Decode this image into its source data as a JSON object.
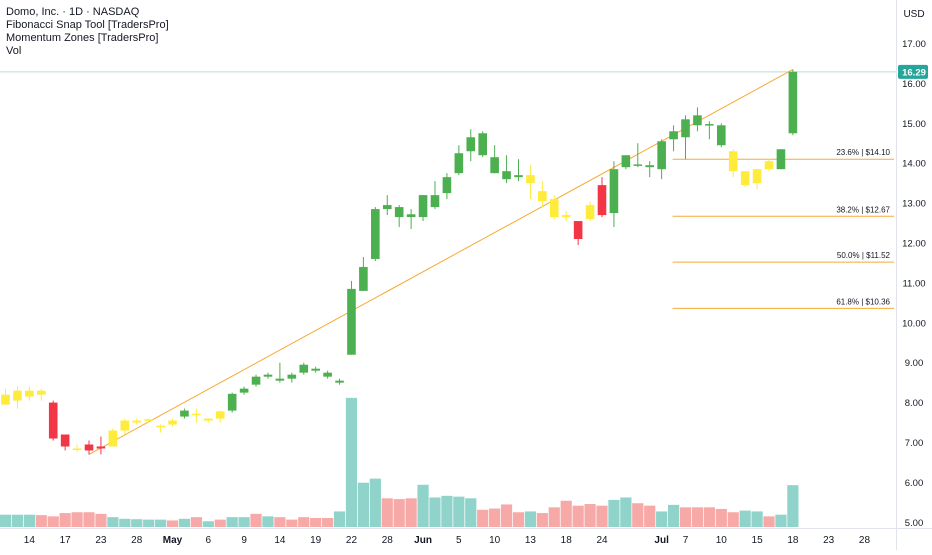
{
  "legend": {
    "title": "Domo, Inc. · 1D · NASDAQ",
    "indicator_1": "Fibonacci Snap Tool [TradersPro]",
    "indicator_2": "Momentum Zones [TradersPro]",
    "indicator_3": "Vol"
  },
  "price_axis": {
    "currency": "USD",
    "ticks": [
      "17.00",
      "16.00",
      "15.00",
      "14.00",
      "13.00",
      "12.00",
      "11.00",
      "10.00",
      "9.00",
      "8.00",
      "7.00",
      "6.00",
      "5.00"
    ],
    "last_price_label": "16.29"
  },
  "fib_labels": [
    "23.6% | $14.10",
    "38.2% | $12.67",
    "50.0% | $11.52",
    "61.8% | $10.36"
  ],
  "time_axis": [
    "14",
    "17",
    "23",
    "28",
    "May",
    "6",
    "9",
    "14",
    "19",
    "22",
    "28",
    "Jun",
    "5",
    "10",
    "13",
    "18",
    "24",
    "Jul",
    "7",
    "10",
    "15",
    "18",
    "23",
    "28"
  ],
  "colors": {
    "up": "#4caf50",
    "down": "#f23645",
    "neutral_zone": "#ffeb3b",
    "vol_up": "#8fd3cb",
    "vol_down": "#f7a9a8",
    "trend_line": "#f7a935",
    "fib_line": "#f7a935",
    "last_price_badge": "#26a69a",
    "last_price_line": "#b2dfdb"
  },
  "chart_data": {
    "type": "candlestick",
    "title": "Domo, Inc. · 1D · NASDAQ",
    "symbol": "DOMO",
    "interval": "1D",
    "exchange": "NASDAQ",
    "currency": "USD",
    "ylim": [
      4.9,
      17.4
    ],
    "last_price": 16.29,
    "candles": [
      {
        "o": 8.2,
        "h": 8.35,
        "l": 7.95,
        "c": 7.95,
        "zone": "neutral"
      },
      {
        "o": 8.05,
        "h": 8.4,
        "l": 7.85,
        "c": 8.3,
        "zone": "neutral"
      },
      {
        "o": 8.15,
        "h": 8.4,
        "l": 8.05,
        "c": 8.3,
        "zone": "neutral"
      },
      {
        "o": 8.2,
        "h": 8.35,
        "l": 8.05,
        "c": 8.3,
        "zone": "neutral"
      },
      {
        "o": 8.0,
        "h": 8.05,
        "l": 7.05,
        "c": 7.1,
        "zone": "down"
      },
      {
        "o": 7.2,
        "h": 7.2,
        "l": 6.8,
        "c": 6.9,
        "zone": "down"
      },
      {
        "o": 6.85,
        "h": 6.95,
        "l": 6.75,
        "c": 6.85,
        "zone": "neutral"
      },
      {
        "o": 6.95,
        "h": 7.05,
        "l": 6.7,
        "c": 6.8,
        "zone": "down"
      },
      {
        "o": 6.85,
        "h": 7.15,
        "l": 6.7,
        "c": 6.9,
        "zone": "down"
      },
      {
        "o": 6.9,
        "h": 7.35,
        "l": 6.9,
        "c": 7.3,
        "zone": "neutral"
      },
      {
        "o": 7.3,
        "h": 7.6,
        "l": 7.2,
        "c": 7.55,
        "zone": "neutral"
      },
      {
        "o": 7.5,
        "h": 7.6,
        "l": 7.45,
        "c": 7.55,
        "zone": "neutral"
      },
      {
        "o": 7.55,
        "h": 7.6,
        "l": 7.5,
        "c": 7.58,
        "zone": "neutral"
      },
      {
        "o": 7.4,
        "h": 7.45,
        "l": 7.25,
        "c": 7.42,
        "zone": "neutral"
      },
      {
        "o": 7.45,
        "h": 7.6,
        "l": 7.4,
        "c": 7.55,
        "zone": "neutral"
      },
      {
        "o": 7.65,
        "h": 7.85,
        "l": 7.6,
        "c": 7.8,
        "zone": "up"
      },
      {
        "o": 7.7,
        "h": 7.85,
        "l": 7.5,
        "c": 7.72,
        "zone": "neutral"
      },
      {
        "o": 7.55,
        "h": 7.6,
        "l": 7.5,
        "c": 7.6,
        "zone": "neutral"
      },
      {
        "o": 7.6,
        "h": 7.8,
        "l": 7.5,
        "c": 7.78,
        "zone": "neutral"
      },
      {
        "o": 7.8,
        "h": 8.25,
        "l": 7.75,
        "c": 8.22,
        "zone": "up"
      },
      {
        "o": 8.25,
        "h": 8.4,
        "l": 8.2,
        "c": 8.35,
        "zone": "up"
      },
      {
        "o": 8.45,
        "h": 8.7,
        "l": 8.4,
        "c": 8.65,
        "zone": "up"
      },
      {
        "o": 8.65,
        "h": 8.75,
        "l": 8.6,
        "c": 8.7,
        "zone": "up"
      },
      {
        "o": 8.55,
        "h": 9.0,
        "l": 8.5,
        "c": 8.6,
        "zone": "up"
      },
      {
        "o": 8.6,
        "h": 8.75,
        "l": 8.5,
        "c": 8.7,
        "zone": "up"
      },
      {
        "o": 8.75,
        "h": 9.0,
        "l": 8.7,
        "c": 8.95,
        "zone": "up"
      },
      {
        "o": 8.85,
        "h": 8.9,
        "l": 8.75,
        "c": 8.8,
        "zone": "up"
      },
      {
        "o": 8.75,
        "h": 8.8,
        "l": 8.6,
        "c": 8.65,
        "zone": "up"
      },
      {
        "o": 8.55,
        "h": 8.6,
        "l": 8.45,
        "c": 8.5,
        "zone": "up"
      },
      {
        "o": 9.2,
        "h": 11.05,
        "l": 9.2,
        "c": 10.85,
        "zone": "up"
      },
      {
        "o": 10.8,
        "h": 11.65,
        "l": 10.8,
        "c": 11.4,
        "zone": "up"
      },
      {
        "o": 11.6,
        "h": 12.9,
        "l": 11.55,
        "c": 12.85,
        "zone": "up"
      },
      {
        "o": 12.85,
        "h": 13.2,
        "l": 12.7,
        "c": 12.95,
        "zone": "up"
      },
      {
        "o": 12.65,
        "h": 12.95,
        "l": 12.4,
        "c": 12.9,
        "zone": "up"
      },
      {
        "o": 12.65,
        "h": 12.85,
        "l": 12.35,
        "c": 12.72,
        "zone": "up"
      },
      {
        "o": 12.65,
        "h": 13.2,
        "l": 12.55,
        "c": 13.2,
        "zone": "up"
      },
      {
        "o": 12.9,
        "h": 13.55,
        "l": 12.85,
        "c": 13.2,
        "zone": "up"
      },
      {
        "o": 13.25,
        "h": 13.75,
        "l": 13.1,
        "c": 13.65,
        "zone": "up"
      },
      {
        "o": 13.75,
        "h": 14.45,
        "l": 13.7,
        "c": 14.25,
        "zone": "up"
      },
      {
        "o": 14.3,
        "h": 14.85,
        "l": 14.05,
        "c": 14.65,
        "zone": "up"
      },
      {
        "o": 14.2,
        "h": 14.8,
        "l": 14.15,
        "c": 14.75,
        "zone": "up"
      },
      {
        "o": 14.15,
        "h": 14.45,
        "l": 13.75,
        "c": 13.75,
        "zone": "up"
      },
      {
        "o": 13.8,
        "h": 14.2,
        "l": 13.5,
        "c": 13.6,
        "zone": "up"
      },
      {
        "o": 13.65,
        "h": 14.1,
        "l": 13.55,
        "c": 13.7,
        "zone": "up"
      },
      {
        "o": 13.7,
        "h": 13.95,
        "l": 13.1,
        "c": 13.5,
        "zone": "neutral"
      },
      {
        "o": 13.3,
        "h": 13.55,
        "l": 12.9,
        "c": 13.05,
        "zone": "neutral"
      },
      {
        "o": 13.1,
        "h": 13.2,
        "l": 12.6,
        "c": 12.65,
        "zone": "neutral"
      },
      {
        "o": 12.65,
        "h": 12.8,
        "l": 12.55,
        "c": 12.7,
        "zone": "neutral"
      },
      {
        "o": 12.55,
        "h": 12.55,
        "l": 11.95,
        "c": 12.1,
        "zone": "down"
      },
      {
        "o": 12.6,
        "h": 13.05,
        "l": 12.55,
        "c": 12.95,
        "zone": "neutral"
      },
      {
        "o": 13.45,
        "h": 13.65,
        "l": 12.65,
        "c": 12.7,
        "zone": "down"
      },
      {
        "o": 12.75,
        "h": 14.05,
        "l": 12.4,
        "c": 13.85,
        "zone": "up"
      },
      {
        "o": 13.9,
        "h": 14.2,
        "l": 13.85,
        "c": 14.2,
        "zone": "up"
      },
      {
        "o": 13.95,
        "h": 14.5,
        "l": 13.9,
        "c": 13.97,
        "zone": "up"
      },
      {
        "o": 13.9,
        "h": 14.05,
        "l": 13.65,
        "c": 13.95,
        "zone": "up"
      },
      {
        "o": 13.85,
        "h": 14.6,
        "l": 13.6,
        "c": 14.55,
        "zone": "up"
      },
      {
        "o": 14.6,
        "h": 14.95,
        "l": 14.3,
        "c": 14.8,
        "zone": "up"
      },
      {
        "o": 14.65,
        "h": 15.2,
        "l": 14.1,
        "c": 15.1,
        "zone": "up"
      },
      {
        "o": 14.95,
        "h": 15.4,
        "l": 14.8,
        "c": 15.2,
        "zone": "up"
      },
      {
        "o": 14.95,
        "h": 15.05,
        "l": 14.6,
        "c": 14.98,
        "zone": "up"
      },
      {
        "o": 14.95,
        "h": 15.0,
        "l": 14.4,
        "c": 14.45,
        "zone": "up"
      },
      {
        "o": 14.3,
        "h": 14.35,
        "l": 13.65,
        "c": 13.8,
        "zone": "neutral"
      },
      {
        "o": 13.8,
        "h": 13.8,
        "l": 13.4,
        "c": 13.45,
        "zone": "neutral"
      },
      {
        "o": 13.5,
        "h": 13.85,
        "l": 13.35,
        "c": 13.85,
        "zone": "neutral"
      },
      {
        "o": 13.85,
        "h": 14.1,
        "l": 13.8,
        "c": 14.05,
        "zone": "neutral"
      },
      {
        "o": 13.85,
        "h": 14.35,
        "l": 13.85,
        "c": 14.35,
        "zone": "up"
      },
      {
        "o": 14.75,
        "h": 16.35,
        "l": 14.7,
        "c": 16.29,
        "zone": "up"
      }
    ],
    "volume": [
      {
        "v": 0.3,
        "d": "up"
      },
      {
        "v": 0.3,
        "d": "up"
      },
      {
        "v": 0.3,
        "d": "up"
      },
      {
        "v": 0.29,
        "d": "down"
      },
      {
        "v": 0.26,
        "d": "down"
      },
      {
        "v": 0.34,
        "d": "down"
      },
      {
        "v": 0.36,
        "d": "down"
      },
      {
        "v": 0.36,
        "d": "down"
      },
      {
        "v": 0.32,
        "d": "down"
      },
      {
        "v": 0.24,
        "d": "up"
      },
      {
        "v": 0.2,
        "d": "up"
      },
      {
        "v": 0.19,
        "d": "up"
      },
      {
        "v": 0.18,
        "d": "up"
      },
      {
        "v": 0.18,
        "d": "up"
      },
      {
        "v": 0.16,
        "d": "down"
      },
      {
        "v": 0.2,
        "d": "up"
      },
      {
        "v": 0.24,
        "d": "down"
      },
      {
        "v": 0.14,
        "d": "up"
      },
      {
        "v": 0.18,
        "d": "down"
      },
      {
        "v": 0.24,
        "d": "up"
      },
      {
        "v": 0.24,
        "d": "up"
      },
      {
        "v": 0.32,
        "d": "down"
      },
      {
        "v": 0.26,
        "d": "up"
      },
      {
        "v": 0.24,
        "d": "down"
      },
      {
        "v": 0.18,
        "d": "down"
      },
      {
        "v": 0.24,
        "d": "down"
      },
      {
        "v": 0.22,
        "d": "down"
      },
      {
        "v": 0.22,
        "d": "down"
      },
      {
        "v": 0.38,
        "d": "up"
      },
      {
        "v": 3.15,
        "d": "up"
      },
      {
        "v": 1.08,
        "d": "up"
      },
      {
        "v": 1.18,
        "d": "up"
      },
      {
        "v": 0.7,
        "d": "down"
      },
      {
        "v": 0.68,
        "d": "down"
      },
      {
        "v": 0.7,
        "d": "down"
      },
      {
        "v": 1.03,
        "d": "up"
      },
      {
        "v": 0.72,
        "d": "up"
      },
      {
        "v": 0.76,
        "d": "up"
      },
      {
        "v": 0.74,
        "d": "up"
      },
      {
        "v": 0.7,
        "d": "up"
      },
      {
        "v": 0.42,
        "d": "down"
      },
      {
        "v": 0.45,
        "d": "down"
      },
      {
        "v": 0.55,
        "d": "down"
      },
      {
        "v": 0.36,
        "d": "down"
      },
      {
        "v": 0.38,
        "d": "up"
      },
      {
        "v": 0.34,
        "d": "down"
      },
      {
        "v": 0.48,
        "d": "down"
      },
      {
        "v": 0.64,
        "d": "down"
      },
      {
        "v": 0.52,
        "d": "down"
      },
      {
        "v": 0.56,
        "d": "down"
      },
      {
        "v": 0.52,
        "d": "down"
      },
      {
        "v": 0.66,
        "d": "up"
      },
      {
        "v": 0.72,
        "d": "up"
      },
      {
        "v": 0.58,
        "d": "down"
      },
      {
        "v": 0.52,
        "d": "down"
      },
      {
        "v": 0.38,
        "d": "up"
      },
      {
        "v": 0.54,
        "d": "up"
      },
      {
        "v": 0.48,
        "d": "down"
      },
      {
        "v": 0.48,
        "d": "down"
      },
      {
        "v": 0.48,
        "d": "down"
      },
      {
        "v": 0.44,
        "d": "down"
      },
      {
        "v": 0.36,
        "d": "down"
      },
      {
        "v": 0.4,
        "d": "up"
      },
      {
        "v": 0.38,
        "d": "up"
      },
      {
        "v": 0.26,
        "d": "down"
      },
      {
        "v": 0.3,
        "d": "up"
      },
      {
        "v": 1.02,
        "d": "up"
      }
    ],
    "trend_line": {
      "from_index": 7,
      "from_price": 6.7,
      "to_index": 66,
      "to_price": 16.35
    },
    "fib_levels": [
      {
        "label": "23.6% | $14.10",
        "price": 14.1
      },
      {
        "label": "38.2% | $12.67",
        "price": 12.67
      },
      {
        "label": "50.0% | $11.52",
        "price": 11.52
      },
      {
        "label": "61.8% | $10.36",
        "price": 10.36
      }
    ],
    "fib_start_index": 56,
    "x_ticks": [
      {
        "label": "14",
        "index": 2
      },
      {
        "label": "17",
        "index": 5
      },
      {
        "label": "23",
        "index": 8
      },
      {
        "label": "28",
        "index": 11
      },
      {
        "label": "May",
        "index": 14
      },
      {
        "label": "6",
        "index": 17
      },
      {
        "label": "9",
        "index": 20
      },
      {
        "label": "14",
        "index": 23
      },
      {
        "label": "19",
        "index": 26
      },
      {
        "label": "22",
        "index": 29
      },
      {
        "label": "28",
        "index": 32
      },
      {
        "label": "Jun",
        "index": 35
      },
      {
        "label": "5",
        "index": 38
      },
      {
        "label": "10",
        "index": 41
      },
      {
        "label": "13",
        "index": 44
      },
      {
        "label": "18",
        "index": 47
      },
      {
        "label": "24",
        "index": 50
      },
      {
        "label": "Jul",
        "index": 55
      },
      {
        "label": "7",
        "index": 57
      },
      {
        "label": "10",
        "index": 60
      },
      {
        "label": "15",
        "index": 63
      },
      {
        "label": "18",
        "index": 66
      },
      {
        "label": "23",
        "index": 69
      },
      {
        "label": "28",
        "index": 72
      }
    ]
  }
}
